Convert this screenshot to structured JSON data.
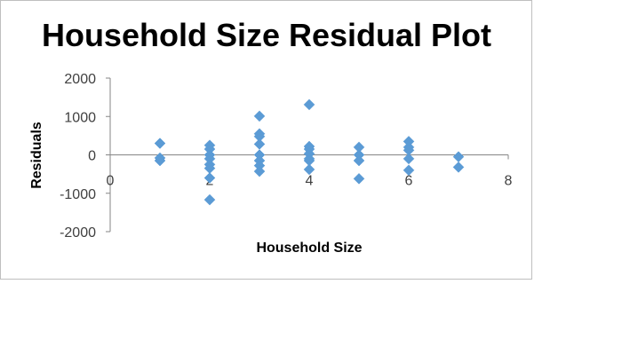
{
  "chart_data": {
    "type": "scatter",
    "title": "Household Size  Residual Plot",
    "xlabel": "Household Size",
    "ylabel": "Residuals",
    "xlim": [
      0,
      8
    ],
    "ylim": [
      -2000,
      2000
    ],
    "x_ticks": [
      0,
      2,
      4,
      6,
      8
    ],
    "y_ticks": [
      -2000,
      -1000,
      0,
      1000,
      2000
    ],
    "grid": false,
    "legend": "none",
    "marker": "diamond",
    "marker_color": "#5B9BD5",
    "points": [
      {
        "x": 1,
        "y": 300
      },
      {
        "x": 1,
        "y": -80
      },
      {
        "x": 1,
        "y": -150
      },
      {
        "x": 2,
        "y": 250
      },
      {
        "x": 2,
        "y": 150
      },
      {
        "x": 2,
        "y": 0
      },
      {
        "x": 2,
        "y": -100
      },
      {
        "x": 2,
        "y": -250
      },
      {
        "x": 2,
        "y": -350
      },
      {
        "x": 2,
        "y": -600
      },
      {
        "x": 2,
        "y": -1170
      },
      {
        "x": 3,
        "y": 1010
      },
      {
        "x": 3,
        "y": 550
      },
      {
        "x": 3,
        "y": 480
      },
      {
        "x": 3,
        "y": 280
      },
      {
        "x": 3,
        "y": 0
      },
      {
        "x": 3,
        "y": -150
      },
      {
        "x": 3,
        "y": -280
      },
      {
        "x": 3,
        "y": -430
      },
      {
        "x": 4,
        "y": 1310
      },
      {
        "x": 4,
        "y": 220
      },
      {
        "x": 4,
        "y": 150
      },
      {
        "x": 4,
        "y": 30
      },
      {
        "x": 4,
        "y": -100
      },
      {
        "x": 4,
        "y": -150
      },
      {
        "x": 4,
        "y": -380
      },
      {
        "x": 5,
        "y": 200
      },
      {
        "x": 5,
        "y": 0
      },
      {
        "x": 5,
        "y": -150
      },
      {
        "x": 5,
        "y": -620
      },
      {
        "x": 6,
        "y": 350
      },
      {
        "x": 6,
        "y": 200
      },
      {
        "x": 6,
        "y": 120
      },
      {
        "x": 6,
        "y": -100
      },
      {
        "x": 6,
        "y": -400
      },
      {
        "x": 7,
        "y": -50
      },
      {
        "x": 7,
        "y": -320
      }
    ]
  }
}
